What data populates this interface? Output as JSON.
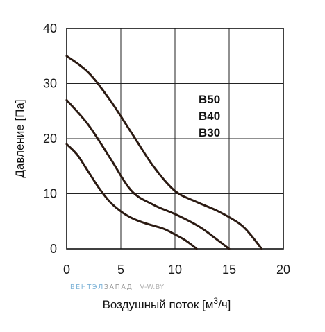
{
  "chart_data": {
    "type": "line",
    "xlabel": "Воздушный поток [м3/ч]",
    "xlabel_main": "Воздушный поток [м",
    "xlabel_sup": "3",
    "xlabel_tail": "/ч]",
    "ylabel": "Давление [Па]",
    "xlim": [
      0,
      20
    ],
    "ylim": [
      0,
      40
    ],
    "xticks": [
      0,
      5,
      10,
      15,
      20
    ],
    "yticks": [
      0,
      10,
      20,
      30,
      40
    ],
    "grid": true,
    "line_color": "#2b1a12",
    "series": [
      {
        "name": "B50",
        "x": [
          0,
          2,
          4,
          6,
          8,
          10,
          12,
          14,
          16,
          17,
          18
        ],
        "y": [
          35,
          32,
          27,
          21,
          15,
          10.5,
          8.5,
          6.8,
          4.5,
          2.5,
          0
        ]
      },
      {
        "name": "B40",
        "x": [
          0,
          2,
          4,
          6,
          8,
          10,
          12,
          13,
          14,
          15
        ],
        "y": [
          27,
          22.5,
          16.5,
          10.5,
          8,
          6.3,
          4.3,
          3,
          1.5,
          0
        ]
      },
      {
        "name": "B30",
        "x": [
          0,
          1,
          2,
          3,
          4,
          5,
          6,
          7,
          8,
          9,
          10,
          11,
          12
        ],
        "y": [
          19,
          17,
          14,
          11,
          8.5,
          6.8,
          5.6,
          4.8,
          4.2,
          3.6,
          2.6,
          1.5,
          0
        ]
      }
    ],
    "legend_placement": "right"
  },
  "watermark": {
    "part1": "ВЕНТЭЛ",
    "part2": "ЗАПАД",
    "part3": "V-W.BY"
  }
}
